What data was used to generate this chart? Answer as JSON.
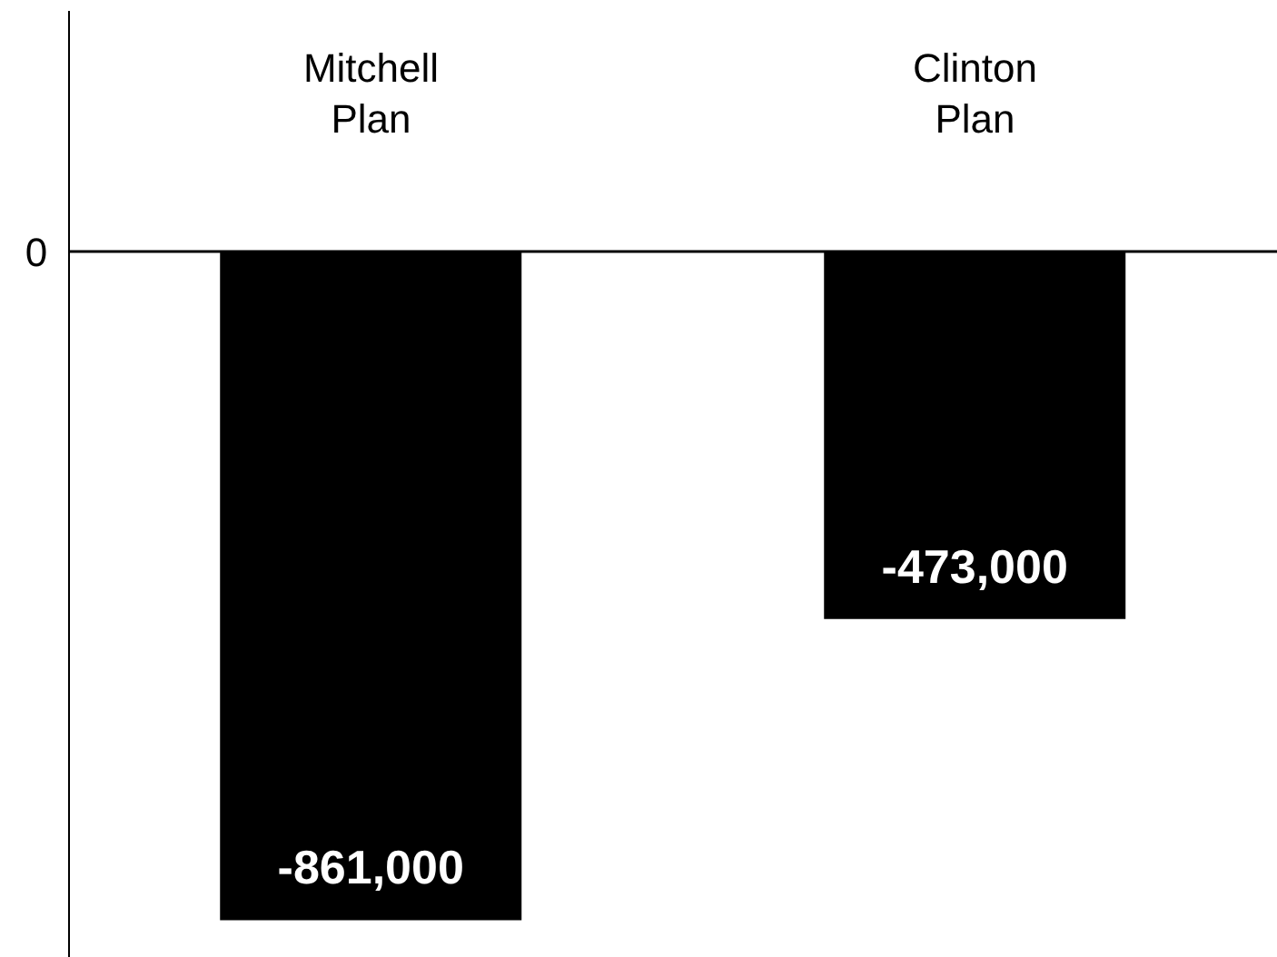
{
  "chart_data": {
    "type": "bar",
    "categories": [
      "Mitchell Plan",
      "Clinton Plan"
    ],
    "series": [
      {
        "color": "#000000",
        "values": [
          -861000,
          -473000
        ],
        "value_labels": [
          "-861,000",
          "-473,000"
        ]
      }
    ],
    "annotations": [
      "0"
    ],
    "grid": false,
    "legend": false
  }
}
